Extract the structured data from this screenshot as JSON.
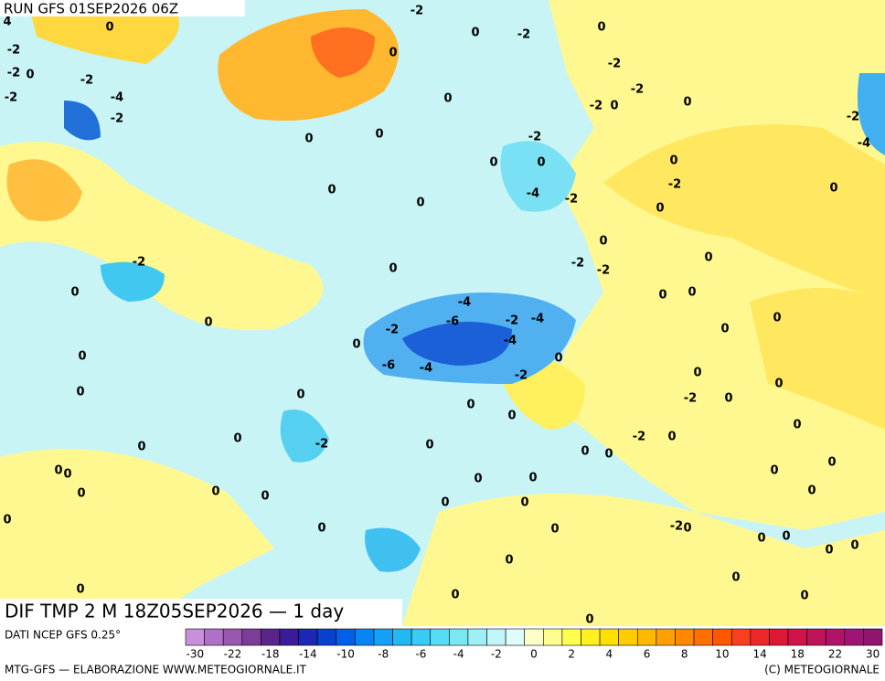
{
  "header": {
    "run": "RUN GFS 01SEP2026 06Z"
  },
  "map": {
    "labels": [
      "4",
      "0",
      "-2",
      "-2",
      "0",
      "-2",
      "-2",
      "-4",
      "-2",
      "-2",
      "0",
      "-2",
      "0",
      "-2",
      "0",
      "0",
      "-2",
      "-2",
      "0",
      "0",
      "0",
      "0",
      "-2",
      "0",
      "0",
      "0",
      "0",
      "0",
      "-4",
      "-2",
      "-2",
      "0",
      "0",
      "-2",
      "-4",
      "-2",
      "0",
      "0",
      "-2",
      "-2",
      "0",
      "0",
      "0",
      "-4",
      "-6",
      "-2",
      "-4",
      "-2",
      "0",
      "-4",
      "0",
      "0",
      "0",
      "0",
      "0",
      "0",
      "-6",
      "-4",
      "-2",
      "0",
      "0",
      "0",
      "0",
      "0",
      "-2",
      "0",
      "0",
      "0",
      "-2",
      "0",
      "0",
      "-2",
      "0",
      "0",
      "0",
      "0",
      "0",
      "0",
      "0",
      "0",
      "0",
      "0",
      "0",
      "0",
      "0",
      "0",
      "0",
      "0",
      "0",
      "0",
      "0",
      "-2",
      "0",
      "0",
      "0",
      "0",
      "0",
      "0",
      "0",
      "0",
      "0",
      "0",
      "0",
      "0"
    ]
  },
  "colorbar": {
    "colors": [
      "#c890d8",
      "#b070c8",
      "#9858b0",
      "#7c3c98",
      "#5a2488",
      "#3a1c98",
      "#1c28b4",
      "#0840d0",
      "#0060e8",
      "#0884f4",
      "#14a0f4",
      "#22b8f4",
      "#38ccf4",
      "#56dcf4",
      "#7ae8f4",
      "#9ef0f4",
      "#c0f6f8",
      "#e0fcfc",
      "#ffffc8",
      "#ffff90",
      "#ffff50",
      "#fff020",
      "#ffe000",
      "#ffcc00",
      "#ffb800",
      "#ffa000",
      "#ff8800",
      "#ff7000",
      "#ff5800",
      "#f84020",
      "#ec2828",
      "#e01838",
      "#d01448",
      "#c01458",
      "#b01468",
      "#a01478",
      "#901470"
    ],
    "ticks": [
      -30,
      -22,
      -18,
      -14,
      -10,
      -8,
      -6,
      -4,
      -2,
      0,
      2,
      4,
      6,
      8,
      10,
      14,
      18,
      22,
      30
    ]
  },
  "footer": {
    "title": "DIF TMP 2 M 18Z05SEP2026 — 1 day",
    "source": "DATI NCEP GFS 0.25°",
    "credit": "MTG-GFS — ELABORAZIONE WWW.METEOGIORNALE.IT",
    "copyright": "(C) METEOGIORNALE"
  }
}
